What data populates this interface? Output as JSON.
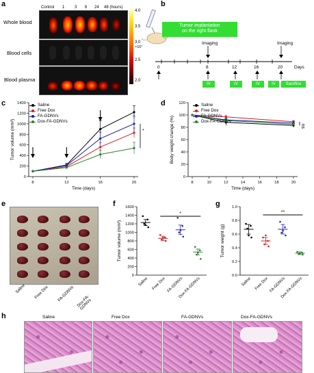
{
  "panel_labels": {
    "a": "a",
    "b": "b",
    "c": "c",
    "d": "d",
    "e": "e",
    "f": "f",
    "g": "g",
    "h": "h"
  },
  "panel_a": {
    "col_headers": [
      "Control",
      "1",
      "3",
      "6",
      "24",
      "48 (hours)"
    ],
    "rows": [
      "Whole blood",
      "Blood cells",
      "Blood plasma"
    ],
    "colorbar_ticks": [
      "4.0",
      "3.5",
      "3.0",
      "2.5",
      "2.0"
    ],
    "colorbar_unit": "×10⁷",
    "colors": {
      "hot": "#ff2a00",
      "mid": "#ffb000",
      "low": "#800000"
    }
  },
  "panel_b": {
    "box_text": [
      "Tumor implantation",
      "on the right flank"
    ],
    "imaging_label": "Imaging",
    "timeline_ticks": [
      "0",
      "8",
      "12",
      "16",
      "20"
    ],
    "days_label": "Days",
    "treatments": [
      "IV",
      "IV",
      "IV",
      "IV",
      "Sacrifice"
    ],
    "box_color": "#33dd33"
  },
  "series_meta": [
    {
      "name": "Saline",
      "color": "#000000"
    },
    {
      "name": "Free Dox",
      "color": "#cc2222"
    },
    {
      "name": "FA-GDNVs",
      "color": "#2222aa"
    },
    {
      "name": "Dox-FA-GDNVs",
      "color": "#2e7d32"
    }
  ],
  "panel_e": {
    "labels": [
      "Saline",
      "Free Dox",
      "FA-GDNVs",
      "Dox-FA-GDNVs"
    ]
  },
  "panel_h": {
    "labels": [
      "Saline",
      "Free Dox",
      "FA-GDNVs",
      "Dox-FA-GDNVs"
    ]
  },
  "chart_data": [
    {
      "id": "c",
      "type": "line",
      "xlabel": "Time (days)",
      "ylabel": "Tumor volume (mm³)",
      "x": [
        8,
        12,
        16,
        20
      ],
      "xticks": [
        "8",
        "12",
        "16",
        "20"
      ],
      "ylim": [
        0,
        1400
      ],
      "yticks": [
        0,
        200,
        400,
        600,
        800,
        1000,
        1200,
        1400
      ],
      "treatment_arrows_at": [
        8,
        12,
        16
      ],
      "significance": "*",
      "series": [
        {
          "name": "Saline",
          "values": [
            100,
            220,
            900,
            1220
          ],
          "err": [
            10,
            30,
            160,
            120
          ]
        },
        {
          "name": "Free Dox",
          "values": [
            100,
            190,
            560,
            830
          ],
          "err": [
            10,
            20,
            80,
            90
          ]
        },
        {
          "name": "FA-GDNVs",
          "values": [
            100,
            210,
            720,
            1000
          ],
          "err": [
            10,
            25,
            120,
            150
          ]
        },
        {
          "name": "Dox-FA-GDNVs",
          "values": [
            100,
            170,
            420,
            540
          ],
          "err": [
            10,
            20,
            80,
            110
          ]
        }
      ]
    },
    {
      "id": "d",
      "type": "line",
      "xlabel": "Time (days)",
      "ylabel": "Body weight change (%)",
      "x": [
        8,
        12,
        20
      ],
      "xticks": [
        "8",
        "10",
        "12",
        "14",
        "16",
        "18",
        "20"
      ],
      "xlim": [
        8,
        20
      ],
      "ylim": [
        0,
        120
      ],
      "yticks": [
        0,
        20,
        40,
        60,
        80,
        100,
        120
      ],
      "significance": "ns",
      "series": [
        {
          "name": "Saline",
          "values": [
            100,
            88,
            83
          ],
          "err": [
            0,
            5,
            3
          ]
        },
        {
          "name": "Free Dox",
          "values": [
            100,
            97,
            89
          ],
          "err": [
            0,
            2,
            2
          ]
        },
        {
          "name": "FA-GDNVs",
          "values": [
            100,
            92,
            87
          ],
          "err": [
            0,
            3,
            2
          ]
        },
        {
          "name": "Dox-FA-GDNVs",
          "values": [
            100,
            91,
            85
          ],
          "err": [
            0,
            3,
            2
          ]
        }
      ]
    },
    {
      "id": "f",
      "type": "scatter",
      "ylabel": "Tumor volume (mm³)",
      "categories": [
        "Saline",
        "Free Dox",
        "FA-GDNVs",
        "Dox-FA-GDNVs"
      ],
      "ylim": [
        0,
        1600
      ],
      "yticks": [
        0,
        200,
        400,
        600,
        800,
        1000,
        1200,
        1400,
        1600
      ],
      "means": [
        1230,
        860,
        1060,
        540
      ],
      "sem": [
        70,
        50,
        110,
        70
      ],
      "points": [
        [
          1380,
          1300,
          1200,
          1120,
          1170
        ],
        [
          940,
          880,
          830,
          800,
          880
        ],
        [
          1340,
          1150,
          1000,
          900,
          1050
        ],
        [
          660,
          580,
          480,
          380,
          520
        ]
      ],
      "significance": "*"
    },
    {
      "id": "g",
      "type": "scatter",
      "ylabel": "Tumor weight (g)",
      "categories": [
        "Saline",
        "Free Dox",
        "FA-GDNVs",
        "Dox-FA-GDNVs"
      ],
      "ylim": [
        0,
        1.0
      ],
      "yticks": [
        0.0,
        0.2,
        0.4,
        0.6,
        0.8,
        1.0
      ],
      "yticklabels": [
        "0.0",
        "0.2",
        "0.4",
        "0.6",
        "0.8",
        "1.0"
      ],
      "means": [
        0.67,
        0.5,
        0.67,
        0.32
      ],
      "sem": [
        0.07,
        0.05,
        0.07,
        0.02
      ],
      "points": [
        [
          0.75,
          0.72,
          0.68,
          0.55,
          0.58
        ],
        [
          0.55,
          0.5,
          0.45,
          0.42,
          0.58
        ],
        [
          0.78,
          0.7,
          0.62,
          0.58,
          0.65
        ],
        [
          0.34,
          0.33,
          0.31,
          0.3,
          0.32
        ]
      ],
      "significance": "**"
    }
  ]
}
